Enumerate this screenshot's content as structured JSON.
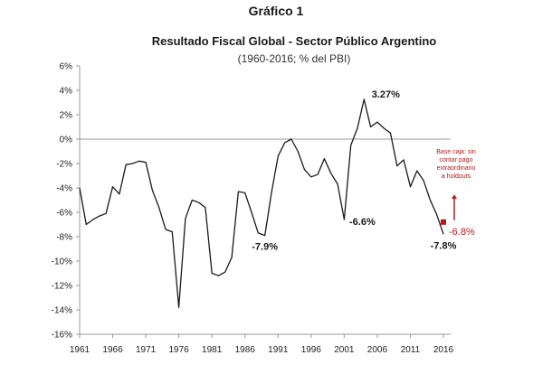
{
  "page": {
    "heading": "Gráfico 1"
  },
  "chart_data": {
    "type": "line",
    "title": "Resultado Fiscal Global - Sector Público Argentino",
    "subtitle": "(1960-2016; % del PBI)",
    "xlabel": "",
    "ylabel": "",
    "ylim": [
      -16,
      6
    ],
    "xlim": [
      1961,
      2016
    ],
    "y_ticks": [
      "6%",
      "4%",
      "2%",
      "0%",
      "-2%",
      "-4%",
      "-6%",
      "-8%",
      "-10%",
      "-12%",
      "-14%",
      "-16%"
    ],
    "x_ticks": [
      "1961",
      "1966",
      "1971",
      "1976",
      "1981",
      "1986",
      "1991",
      "1996",
      "2001",
      "2006",
      "2011",
      "2016"
    ],
    "grid": false,
    "series": [
      {
        "color": "#1a1a1a",
        "x": [
          1961,
          1962,
          1963,
          1964,
          1965,
          1966,
          1967,
          1968,
          1969,
          1970,
          1971,
          1972,
          1973,
          1974,
          1975,
          1976,
          1977,
          1978,
          1979,
          1980,
          1981,
          1982,
          1983,
          1984,
          1985,
          1986,
          1987,
          1988,
          1989,
          1990,
          1991,
          1992,
          1993,
          1994,
          1995,
          1996,
          1997,
          1998,
          1999,
          2000,
          2001,
          2002,
          2003,
          2004,
          2005,
          2006,
          2007,
          2008,
          2009,
          2010,
          2011,
          2012,
          2013,
          2014,
          2015,
          2016
        ],
        "y": [
          -4.0,
          -7.0,
          -6.6,
          -6.3,
          -6.1,
          -3.9,
          -4.5,
          -2.1,
          -2.0,
          -1.8,
          -1.9,
          -4.2,
          -5.6,
          -7.4,
          -7.6,
          -13.8,
          -6.5,
          -5.0,
          -5.2,
          -5.6,
          -11.0,
          -11.2,
          -10.9,
          -9.7,
          -4.3,
          -4.4,
          -6.0,
          -7.7,
          -7.9,
          -4.4,
          -1.4,
          -0.3,
          0.0,
          -1.0,
          -2.5,
          -3.1,
          -2.9,
          -1.6,
          -2.8,
          -3.7,
          -6.6,
          -0.5,
          0.9,
          3.27,
          1.0,
          1.4,
          0.9,
          0.5,
          -2.2,
          -1.7,
          -3.9,
          -2.6,
          -3.4,
          -5.0,
          -6.2,
          -7.8
        ]
      }
    ],
    "annotations": [
      {
        "label": "-7.9%",
        "x": 1989,
        "y": -7.9
      },
      {
        "label": "-6.6%",
        "x": 2001,
        "y": -6.6
      },
      {
        "label": "3.27%",
        "x": 2004,
        "y": 3.27
      },
      {
        "label": "-7.8%",
        "x": 2016,
        "y": -7.8
      }
    ],
    "extra_point": {
      "label": "-6.8%",
      "x": 2016,
      "y": -6.8,
      "color": "#b51b1b"
    },
    "note": {
      "lines": [
        "Base caja: sin",
        "contar pago",
        "extraordinario",
        "a holdouts"
      ],
      "color": "#b51b1b"
    }
  }
}
